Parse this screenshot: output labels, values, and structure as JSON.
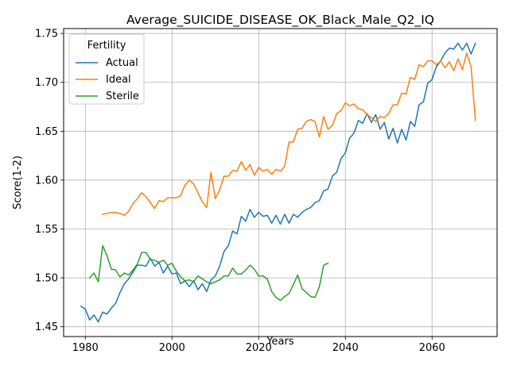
{
  "chart_data": {
    "type": "line",
    "title": "Average_SUICIDE_DISEASE_OK_Black_Male_Q2_IQ",
    "xlabel": "Years",
    "ylabel": "Score(1-2)",
    "xlim": [
      1975,
      2075
    ],
    "ylim": [
      1.44,
      1.755
    ],
    "xticks": [
      1980,
      2000,
      2020,
      2040,
      2060
    ],
    "xtick_labels": [
      "1980",
      "2000",
      "2020",
      "2040",
      "2060"
    ],
    "yticks": [
      1.45,
      1.5,
      1.55,
      1.6,
      1.65,
      1.7,
      1.75
    ],
    "ytick_labels": [
      "1.45",
      "1.50",
      "1.55",
      "1.60",
      "1.65",
      "1.70",
      "1.75"
    ],
    "grid": true,
    "legend": {
      "title": "Fertility",
      "position": "top-left"
    },
    "series": [
      {
        "name": "Actual",
        "color": "#1f77b4",
        "x": [
          1979,
          1980,
          1981,
          1982,
          1983,
          1984,
          1985,
          1986,
          1987,
          1988,
          1989,
          1990,
          1991,
          1992,
          1993,
          1994,
          1995,
          1996,
          1997,
          1998,
          1999,
          2000,
          2001,
          2002,
          2003,
          2004,
          2005,
          2006,
          2007,
          2008,
          2009,
          2010,
          2011,
          2012,
          2013,
          2014,
          2015,
          2016,
          2017,
          2018,
          2019,
          2020,
          2021,
          2022,
          2023,
          2024,
          2025,
          2026,
          2027,
          2028,
          2029,
          2030,
          2031,
          2032,
          2033,
          2034,
          2035,
          2036,
          2037,
          2038,
          2039,
          2040,
          2041,
          2042,
          2043,
          2044,
          2045,
          2046,
          2047,
          2048,
          2049,
          2050,
          2051,
          2052,
          2053,
          2054,
          2055,
          2056,
          2057,
          2058,
          2059,
          2060,
          2061,
          2062,
          2063,
          2064,
          2065,
          2066,
          2067,
          2068,
          2069,
          2070
        ],
        "y": [
          1.471,
          1.468,
          1.457,
          1.462,
          1.455,
          1.465,
          1.463,
          1.469,
          1.474,
          1.485,
          1.494,
          1.499,
          1.506,
          1.513,
          1.513,
          1.512,
          1.52,
          1.512,
          1.516,
          1.505,
          1.512,
          1.504,
          1.505,
          1.494,
          1.497,
          1.491,
          1.497,
          1.488,
          1.494,
          1.486,
          1.498,
          1.502,
          1.512,
          1.527,
          1.533,
          1.548,
          1.545,
          1.563,
          1.558,
          1.57,
          1.562,
          1.567,
          1.563,
          1.564,
          1.556,
          1.564,
          1.555,
          1.565,
          1.556,
          1.565,
          1.562,
          1.567,
          1.57,
          1.572,
          1.577,
          1.579,
          1.589,
          1.591,
          1.604,
          1.608,
          1.622,
          1.628,
          1.643,
          1.648,
          1.661,
          1.658,
          1.668,
          1.659,
          1.667,
          1.652,
          1.659,
          1.642,
          1.653,
          1.638,
          1.652,
          1.641,
          1.66,
          1.655,
          1.677,
          1.68,
          1.699,
          1.703,
          1.716,
          1.722,
          1.73,
          1.735,
          1.734,
          1.74,
          1.733,
          1.74,
          1.729,
          1.74
        ]
      },
      {
        "name": "Ideal",
        "color": "#ff7f0e",
        "x": [
          1984,
          1985,
          1986,
          1987,
          1988,
          1989,
          1990,
          1991,
          1992,
          1993,
          1994,
          1995,
          1996,
          1997,
          1998,
          1999,
          2000,
          2001,
          2002,
          2003,
          2004,
          2005,
          2006,
          2007,
          2008,
          2009,
          2010,
          2011,
          2012,
          2013,
          2014,
          2015,
          2016,
          2017,
          2018,
          2019,
          2020,
          2021,
          2022,
          2023,
          2024,
          2025,
          2026,
          2027,
          2028,
          2029,
          2030,
          2031,
          2032,
          2033,
          2034,
          2035,
          2036,
          2037,
          2038,
          2039,
          2040,
          2041,
          2042,
          2043,
          2044,
          2045,
          2046,
          2047,
          2048,
          2049,
          2050,
          2051,
          2052,
          2053,
          2054,
          2055,
          2056,
          2057,
          2058,
          2059,
          2060,
          2061,
          2062,
          2063,
          2064,
          2065,
          2066,
          2067,
          2068,
          2069,
          2070
        ],
        "y": [
          1.565,
          1.566,
          1.567,
          1.567,
          1.566,
          1.564,
          1.568,
          1.576,
          1.581,
          1.587,
          1.583,
          1.577,
          1.571,
          1.579,
          1.578,
          1.582,
          1.582,
          1.582,
          1.584,
          1.595,
          1.6,
          1.596,
          1.587,
          1.578,
          1.572,
          1.608,
          1.581,
          1.59,
          1.604,
          1.604,
          1.61,
          1.609,
          1.619,
          1.61,
          1.616,
          1.605,
          1.613,
          1.609,
          1.611,
          1.606,
          1.611,
          1.609,
          1.614,
          1.639,
          1.639,
          1.652,
          1.653,
          1.66,
          1.662,
          1.66,
          1.644,
          1.665,
          1.652,
          1.656,
          1.668,
          1.671,
          1.679,
          1.676,
          1.678,
          1.673,
          1.672,
          1.667,
          1.664,
          1.66,
          1.665,
          1.664,
          1.668,
          1.677,
          1.677,
          1.689,
          1.688,
          1.705,
          1.703,
          1.718,
          1.716,
          1.722,
          1.722,
          1.718,
          1.722,
          1.715,
          1.721,
          1.712,
          1.724,
          1.713,
          1.73,
          1.716,
          1.661
        ]
      },
      {
        "name": "Sterile",
        "color": "#2ca02c",
        "x": [
          1981,
          1982,
          1983,
          1984,
          1985,
          1986,
          1987,
          1988,
          1989,
          1990,
          1991,
          1992,
          1993,
          1994,
          1995,
          1996,
          1997,
          1998,
          1999,
          2000,
          2001,
          2002,
          2003,
          2004,
          2005,
          2006,
          2007,
          2008,
          2009,
          2010,
          2011,
          2012,
          2013,
          2014,
          2015,
          2016,
          2017,
          2018,
          2019,
          2020,
          2021,
          2022,
          2023,
          2024,
          2025,
          2026,
          2027,
          2028,
          2029,
          2030,
          2031,
          2032,
          2033,
          2034,
          2035,
          2036
        ],
        "y": [
          1.5,
          1.505,
          1.496,
          1.533,
          1.523,
          1.509,
          1.508,
          1.501,
          1.505,
          1.503,
          1.508,
          1.514,
          1.526,
          1.526,
          1.519,
          1.518,
          1.516,
          1.518,
          1.513,
          1.515,
          1.507,
          1.501,
          1.497,
          1.498,
          1.496,
          1.502,
          1.499,
          1.496,
          1.494,
          1.496,
          1.498,
          1.502,
          1.502,
          1.51,
          1.504,
          1.504,
          1.508,
          1.513,
          1.509,
          1.502,
          1.502,
          1.499,
          1.486,
          1.48,
          1.477,
          1.481,
          1.484,
          1.493,
          1.503,
          1.489,
          1.485,
          1.481,
          1.48,
          1.491,
          1.513,
          1.515
        ]
      }
    ]
  }
}
